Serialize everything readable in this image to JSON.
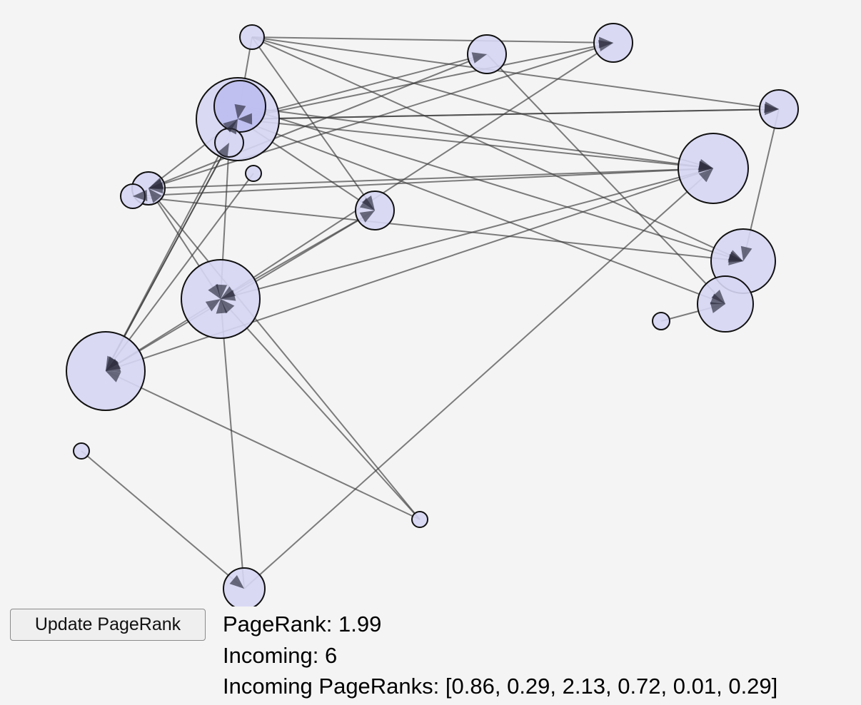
{
  "controls": {
    "update_label": "Update PageRank"
  },
  "info": {
    "pagerank_label": "PageRank: ",
    "pagerank_value": "1.99",
    "incoming_label": "Incoming: ",
    "incoming_value": "6",
    "incoming_ranks_label": "Incoming PageRanks: ",
    "incoming_ranks_value": "[0.86, 0.29, 2.13, 0.72, 0.01, 0.29]"
  },
  "colors": {
    "node_fill": "#d6d6f4",
    "node_stroke": "#111111",
    "edge": "#3a3a3a",
    "background": "#f4f4f4"
  }
}
